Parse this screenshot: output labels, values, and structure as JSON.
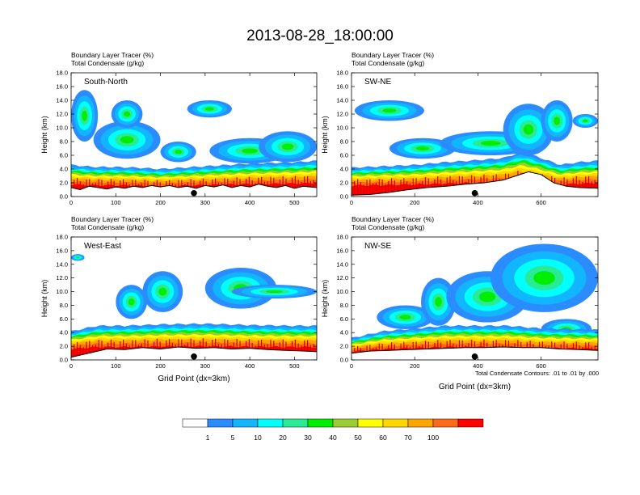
{
  "figure": {
    "title": "2013-08-28_18:00:00",
    "contour_note": "Total Condensate Contours: .01 to .01 by .000"
  },
  "chart_data": [
    {
      "type": "heatmap",
      "panel": "South-North",
      "label": "South-North",
      "subtitle_lines": [
        "Boundary Layer Tracer   (%)",
        "Total Condensate   (g/kg)"
      ],
      "xlabel": "",
      "ylabel": "Height (km)",
      "xlim": [
        0,
        550
      ],
      "ylim": [
        0,
        18
      ],
      "xticks": [
        0,
        100,
        200,
        300,
        400,
        500
      ],
      "yticks": [
        "0.0",
        "2.0",
        "4.0",
        "6.0",
        "8.0",
        "10.0",
        "12.0",
        "14.0",
        "16.0",
        "18.0"
      ],
      "marker_x": 275,
      "terrain": [
        [
          0,
          1.3
        ],
        [
          20,
          1.0
        ],
        [
          40,
          1.5
        ],
        [
          60,
          1.3
        ],
        [
          80,
          1.1
        ],
        [
          100,
          1.4
        ],
        [
          120,
          1.2
        ],
        [
          140,
          1.5
        ],
        [
          160,
          1.3
        ],
        [
          180,
          1.6
        ],
        [
          200,
          1.4
        ],
        [
          220,
          1.6
        ],
        [
          240,
          1.3
        ],
        [
          260,
          1.5
        ],
        [
          280,
          1.2
        ],
        [
          300,
          1.6
        ],
        [
          320,
          1.4
        ],
        [
          340,
          1.7
        ],
        [
          360,
          1.3
        ],
        [
          380,
          1.6
        ],
        [
          400,
          1.4
        ],
        [
          420,
          1.8
        ],
        [
          440,
          1.5
        ],
        [
          460,
          1.3
        ],
        [
          480,
          1.6
        ],
        [
          500,
          1.2
        ],
        [
          520,
          1.5
        ],
        [
          550,
          1.3
        ]
      ],
      "boundary_top": [
        [
          0,
          4.6
        ],
        [
          50,
          4.3
        ],
        [
          100,
          4.3
        ],
        [
          150,
          4.2
        ],
        [
          200,
          4.0
        ],
        [
          250,
          4.2
        ],
        [
          300,
          4.4
        ],
        [
          350,
          4.6
        ],
        [
          400,
          4.8
        ],
        [
          450,
          4.9
        ],
        [
          500,
          5.0
        ],
        [
          550,
          5.2
        ]
      ],
      "cloud_blobs": [
        {
          "x": [
            0,
            60
          ],
          "y": [
            8,
            15.5
          ]
        },
        {
          "x": [
            50,
            200
          ],
          "y": [
            5.5,
            11
          ]
        },
        {
          "x": [
            90,
            160
          ],
          "y": [
            10,
            14
          ]
        },
        {
          "x": [
            200,
            280
          ],
          "y": [
            5,
            8
          ]
        },
        {
          "x": [
            260,
            360
          ],
          "y": [
            11.5,
            14
          ]
        },
        {
          "x": [
            310,
            490
          ],
          "y": [
            4.8,
            8.5
          ]
        },
        {
          "x": [
            420,
            550
          ],
          "y": [
            5,
            9.5
          ]
        }
      ]
    },
    {
      "type": "heatmap",
      "panel": "SW-NE",
      "label": "SW-NE",
      "subtitle_lines": [
        "Boundary Layer Tracer   (%)",
        "Total Condensate   (g/kg)"
      ],
      "xlabel": "",
      "ylabel": "Height (km)",
      "xlim": [
        0,
        780
      ],
      "ylim": [
        0,
        18
      ],
      "xticks": [
        0,
        200,
        400,
        600
      ],
      "yticks": [
        "0.0",
        "2.0",
        "4.0",
        "6.0",
        "8.0",
        "10.0",
        "12.0",
        "14.0",
        "16.0",
        "18.0"
      ],
      "marker_x": 390,
      "terrain": [
        [
          0,
          0.2
        ],
        [
          60,
          0.3
        ],
        [
          120,
          0.6
        ],
        [
          180,
          1.0
        ],
        [
          240,
          1.3
        ],
        [
          300,
          1.5
        ],
        [
          360,
          1.8
        ],
        [
          420,
          2.0
        ],
        [
          480,
          2.4
        ],
        [
          520,
          3.0
        ],
        [
          560,
          3.6
        ],
        [
          600,
          3.2
        ],
        [
          640,
          2.0
        ],
        [
          680,
          1.5
        ],
        [
          720,
          1.3
        ],
        [
          780,
          1.2
        ]
      ],
      "boundary_top": [
        [
          0,
          4.2
        ],
        [
          100,
          4.4
        ],
        [
          200,
          4.6
        ],
        [
          300,
          5.0
        ],
        [
          400,
          5.3
        ],
        [
          480,
          5.6
        ],
        [
          540,
          6.5
        ],
        [
          600,
          5.6
        ],
        [
          660,
          4.6
        ],
        [
          720,
          5.0
        ],
        [
          780,
          5.2
        ]
      ],
      "cloud_blobs": [
        {
          "x": [
            10,
            230
          ],
          "y": [
            11,
            14
          ]
        },
        {
          "x": [
            120,
            330
          ],
          "y": [
            5.5,
            8.5
          ]
        },
        {
          "x": [
            280,
            600
          ],
          "y": [
            6,
            9.5
          ]
        },
        {
          "x": [
            480,
            640
          ],
          "y": [
            6,
            13.5
          ]
        },
        {
          "x": [
            600,
            700
          ],
          "y": [
            8,
            14
          ]
        },
        {
          "x": [
            700,
            780
          ],
          "y": [
            10,
            12
          ]
        }
      ]
    },
    {
      "type": "heatmap",
      "panel": "West-East",
      "label": "West-East",
      "subtitle_lines": [
        "Boundary Layer Tracer   (%)",
        "Total Condensate   (g/kg)"
      ],
      "xlabel": "Grid Point (dx=3km)",
      "ylabel": "Height (km)",
      "xlim": [
        0,
        550
      ],
      "ylim": [
        0,
        18
      ],
      "xticks": [
        0,
        100,
        200,
        300,
        400,
        500
      ],
      "yticks": [
        "0.0",
        "2.0",
        "4.0",
        "6.0",
        "8.0",
        "10.0",
        "12.0",
        "14.0",
        "16.0",
        "18.0"
      ],
      "marker_x": 275,
      "terrain": [
        [
          0,
          0.4
        ],
        [
          40,
          1.0
        ],
        [
          80,
          1.6
        ],
        [
          120,
          1.5
        ],
        [
          160,
          1.8
        ],
        [
          200,
          1.6
        ],
        [
          240,
          1.9
        ],
        [
          280,
          1.7
        ],
        [
          320,
          1.8
        ],
        [
          360,
          1.6
        ],
        [
          400,
          1.7
        ],
        [
          440,
          1.5
        ],
        [
          480,
          1.4
        ],
        [
          520,
          1.3
        ],
        [
          550,
          1.2
        ]
      ],
      "boundary_top": [
        [
          0,
          4.2
        ],
        [
          60,
          5.0
        ],
        [
          120,
          5.0
        ],
        [
          200,
          5.2
        ],
        [
          300,
          5.3
        ],
        [
          400,
          5.1
        ],
        [
          500,
          5.0
        ],
        [
          550,
          5.0
        ]
      ],
      "cloud_blobs": [
        {
          "x": [
            0,
            30
          ],
          "y": [
            14.5,
            15.5
          ]
        },
        {
          "x": [
            100,
            170
          ],
          "y": [
            6,
            11
          ]
        },
        {
          "x": [
            160,
            250
          ],
          "y": [
            7,
            13
          ]
        },
        {
          "x": [
            300,
            460
          ],
          "y": [
            7.5,
            13.5
          ]
        },
        {
          "x": [
            360,
            550
          ],
          "y": [
            9,
            11
          ]
        }
      ]
    },
    {
      "type": "heatmap",
      "panel": "NW-SE",
      "label": "NW-SE",
      "subtitle_lines": [
        "Boundary Layer Tracer   (%)",
        "Total Condensate   (g/kg)"
      ],
      "xlabel": "Grid Point (dx=3km)",
      "ylabel": "Height (km)",
      "xlim": [
        0,
        780
      ],
      "ylim": [
        0,
        18
      ],
      "xticks": [
        0,
        200,
        400,
        600
      ],
      "yticks": [
        "0.0",
        "2.0",
        "4.0",
        "6.0",
        "8.0",
        "10.0",
        "12.0",
        "14.0",
        "16.0",
        "18.0"
      ],
      "marker_x": 390,
      "terrain": [
        [
          0,
          1.0
        ],
        [
          60,
          1.3
        ],
        [
          120,
          1.4
        ],
        [
          180,
          1.5
        ],
        [
          240,
          1.6
        ],
        [
          300,
          1.7
        ],
        [
          360,
          1.8
        ],
        [
          420,
          1.8
        ],
        [
          480,
          1.9
        ],
        [
          540,
          1.8
        ],
        [
          600,
          1.8
        ],
        [
          660,
          1.6
        ],
        [
          720,
          1.5
        ],
        [
          780,
          1.4
        ]
      ],
      "boundary_top": [
        [
          0,
          3.2
        ],
        [
          100,
          4.2
        ],
        [
          200,
          4.6
        ],
        [
          300,
          5.0
        ],
        [
          400,
          5.0
        ],
        [
          500,
          5.0
        ],
        [
          600,
          4.6
        ],
        [
          700,
          4.5
        ],
        [
          780,
          4.4
        ]
      ],
      "cloud_blobs": [
        {
          "x": [
            80,
            260
          ],
          "y": [
            4.5,
            8
          ]
        },
        {
          "x": [
            220,
            330
          ],
          "y": [
            5,
            12
          ]
        },
        {
          "x": [
            300,
            560
          ],
          "y": [
            5.5,
            13
          ]
        },
        {
          "x": [
            440,
            780
          ],
          "y": [
            7,
            17
          ]
        },
        {
          "x": [
            600,
            760
          ],
          "y": [
            3,
            6
          ]
        }
      ]
    }
  ],
  "legend": {
    "levels": [
      "1",
      "5",
      "10",
      "20",
      "30",
      "40",
      "50",
      "60",
      "70",
      "100"
    ],
    "colors": [
      "#ffffff",
      "#2b8cff",
      "#12b6ff",
      "#00ffff",
      "#29eb96",
      "#00ee00",
      "#9acd32",
      "#ffff00",
      "#ffd700",
      "#ffa500",
      "#ff6a1a",
      "#ff0000"
    ]
  }
}
